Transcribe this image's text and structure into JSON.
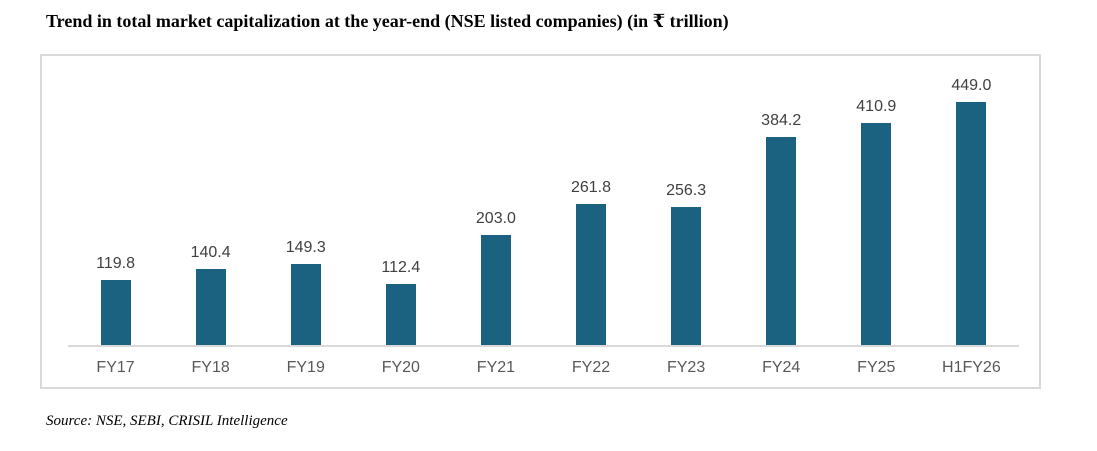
{
  "title": "Trend in total market capitalization at the year-end (NSE listed companies) (in ₹ trillion)",
  "source": "Source: NSE, SEBI, CRISIL Intelligence",
  "colors": {
    "bar": "#1a6280",
    "panel_border": "#d9d9d9",
    "data_label": "#404040",
    "axis_label": "#595959"
  },
  "chart_data": {
    "type": "bar",
    "title": "Trend in total market capitalization at the year-end (NSE listed companies) (in ₹ trillion)",
    "categories": [
      "FY17",
      "FY18",
      "FY19",
      "FY20",
      "FY21",
      "FY22",
      "FY23",
      "FY24",
      "FY25",
      "H1FY26"
    ],
    "values": [
      119.8,
      140.4,
      149.3,
      112.4,
      203.0,
      261.8,
      256.3,
      384.2,
      410.9,
      449.0
    ],
    "value_labels": [
      "119.8",
      "140.4",
      "149.3",
      "112.4",
      "203.0",
      "261.8",
      "256.3",
      "384.2",
      "410.9",
      "449.0"
    ],
    "xlabel": "",
    "ylabel": "",
    "ylim": [
      0,
      535
    ],
    "grid": false,
    "legend": false,
    "data_labels": true
  }
}
